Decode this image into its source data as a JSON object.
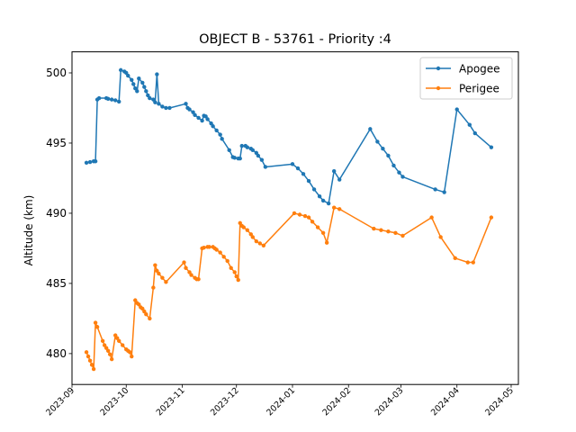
{
  "chart_data": {
    "type": "line",
    "title": "OBJECT B - 53761 - Priority :4",
    "xlabel": "",
    "ylabel": "Altitude (km)",
    "xlim": [
      "2023-09-01",
      "2024-05-05"
    ],
    "ylim": [
      477.8,
      501.5
    ],
    "yticks": [
      480,
      485,
      490,
      495,
      500
    ],
    "xticks": [
      "2023-09",
      "2023-10",
      "2023-11",
      "2023-12",
      "2024-01",
      "2024-02",
      "2024-03",
      "2024-04",
      "2024-05"
    ],
    "grid": false,
    "legend": "top-right",
    "colors": {
      "Apogee": "#1f77b4",
      "Perigee": "#ff7f0e"
    },
    "series": [
      {
        "name": "Apogee",
        "points": [
          [
            "2023-09-09",
            493.6
          ],
          [
            "2023-09-11",
            493.65
          ],
          [
            "2023-09-13",
            493.7
          ],
          [
            "2023-09-14",
            493.7
          ],
          [
            "2023-09-15",
            498.1
          ],
          [
            "2023-09-16",
            498.2
          ],
          [
            "2023-09-20",
            498.2
          ],
          [
            "2023-09-21",
            498.15
          ],
          [
            "2023-09-23",
            498.1
          ],
          [
            "2023-09-25",
            498.05
          ],
          [
            "2023-09-27",
            497.95
          ],
          [
            "2023-09-28",
            500.2
          ],
          [
            "2023-09-30",
            500.1
          ],
          [
            "2023-10-01",
            500.0
          ],
          [
            "2023-10-02",
            499.8
          ],
          [
            "2023-10-04",
            499.5
          ],
          [
            "2023-10-05",
            499.2
          ],
          [
            "2023-10-06",
            498.9
          ],
          [
            "2023-10-07",
            498.7
          ],
          [
            "2023-10-08",
            499.6
          ],
          [
            "2023-10-10",
            499.3
          ],
          [
            "2023-10-11",
            499.0
          ],
          [
            "2023-10-12",
            498.7
          ],
          [
            "2023-10-13",
            498.4
          ],
          [
            "2023-10-14",
            498.2
          ],
          [
            "2023-10-16",
            498.1
          ],
          [
            "2023-10-17",
            497.9
          ],
          [
            "2023-10-18",
            499.9
          ],
          [
            "2023-10-19",
            497.8
          ],
          [
            "2023-10-21",
            497.6
          ],
          [
            "2023-10-23",
            497.5
          ],
          [
            "2023-10-25",
            497.5
          ],
          [
            "2023-11-03",
            497.8
          ],
          [
            "2023-11-04",
            497.5
          ],
          [
            "2023-11-05",
            497.4
          ],
          [
            "2023-11-07",
            497.2
          ],
          [
            "2023-11-08",
            497.0
          ],
          [
            "2023-11-10",
            496.8
          ],
          [
            "2023-11-12",
            496.6
          ],
          [
            "2023-11-13",
            496.95
          ],
          [
            "2023-11-14",
            496.9
          ],
          [
            "2023-11-15",
            496.7
          ],
          [
            "2023-11-17",
            496.4
          ],
          [
            "2023-11-18",
            496.2
          ],
          [
            "2023-11-20",
            495.9
          ],
          [
            "2023-11-22",
            495.6
          ],
          [
            "2023-11-23",
            495.3
          ],
          [
            "2023-11-27",
            494.5
          ],
          [
            "2023-11-29",
            494.0
          ],
          [
            "2023-11-30",
            493.95
          ],
          [
            "2023-12-02",
            493.9
          ],
          [
            "2023-12-03",
            493.9
          ],
          [
            "2023-12-04",
            494.8
          ],
          [
            "2023-12-06",
            494.8
          ],
          [
            "2023-12-07",
            494.7
          ],
          [
            "2023-12-09",
            494.6
          ],
          [
            "2023-12-10",
            494.5
          ],
          [
            "2023-12-12",
            494.3
          ],
          [
            "2023-12-13",
            494.1
          ],
          [
            "2023-12-15",
            493.8
          ],
          [
            "2023-12-17",
            493.3
          ],
          [
            "2024-01-01",
            493.5
          ],
          [
            "2024-01-04",
            493.2
          ],
          [
            "2024-01-07",
            492.8
          ],
          [
            "2024-01-10",
            492.3
          ],
          [
            "2024-01-13",
            491.7
          ],
          [
            "2024-01-16",
            491.2
          ],
          [
            "2024-01-18",
            490.9
          ],
          [
            "2024-01-21",
            490.7
          ],
          [
            "2024-01-24",
            493.0
          ],
          [
            "2024-01-27",
            492.4
          ],
          [
            "2024-02-13",
            496.0
          ],
          [
            "2024-02-17",
            495.1
          ],
          [
            "2024-02-20",
            494.6
          ],
          [
            "2024-02-23",
            494.1
          ],
          [
            "2024-02-26",
            493.4
          ],
          [
            "2024-02-29",
            492.9
          ],
          [
            "2024-03-02",
            492.6
          ],
          [
            "2024-03-20",
            491.7
          ],
          [
            "2024-03-25",
            491.5
          ],
          [
            "2024-04-01",
            497.4
          ],
          [
            "2024-04-08",
            496.3
          ],
          [
            "2024-04-11",
            495.7
          ],
          [
            "2024-04-20",
            494.7
          ]
        ]
      },
      {
        "name": "Perigee",
        "points": [
          [
            "2023-09-09",
            480.1
          ],
          [
            "2023-09-10",
            479.8
          ],
          [
            "2023-09-11",
            479.5
          ],
          [
            "2023-09-12",
            479.2
          ],
          [
            "2023-09-13",
            478.9
          ],
          [
            "2023-09-14",
            482.2
          ],
          [
            "2023-09-15",
            481.9
          ],
          [
            "2023-09-18",
            480.9
          ],
          [
            "2023-09-19",
            480.6
          ],
          [
            "2023-09-20",
            480.4
          ],
          [
            "2023-09-21",
            480.2
          ],
          [
            "2023-09-22",
            479.95
          ],
          [
            "2023-09-23",
            479.6
          ],
          [
            "2023-09-25",
            481.3
          ],
          [
            "2023-09-26",
            481.1
          ],
          [
            "2023-09-27",
            480.9
          ],
          [
            "2023-09-29",
            480.6
          ],
          [
            "2023-10-01",
            480.3
          ],
          [
            "2023-10-02",
            480.2
          ],
          [
            "2023-10-03",
            480.1
          ],
          [
            "2023-10-04",
            479.8
          ],
          [
            "2023-10-06",
            483.8
          ],
          [
            "2023-10-07",
            483.6
          ],
          [
            "2023-10-08",
            483.5
          ],
          [
            "2023-10-09",
            483.3
          ],
          [
            "2023-10-10",
            483.2
          ],
          [
            "2023-10-11",
            483.0
          ],
          [
            "2023-10-12",
            482.8
          ],
          [
            "2023-10-14",
            482.5
          ],
          [
            "2023-10-16",
            484.7
          ],
          [
            "2023-10-17",
            486.3
          ],
          [
            "2023-10-18",
            485.9
          ],
          [
            "2023-10-19",
            485.7
          ],
          [
            "2023-10-21",
            485.4
          ],
          [
            "2023-10-23",
            485.1
          ],
          [
            "2023-11-02",
            486.5
          ],
          [
            "2023-11-03",
            486.1
          ],
          [
            "2023-11-05",
            485.8
          ],
          [
            "2023-11-06",
            485.6
          ],
          [
            "2023-11-08",
            485.4
          ],
          [
            "2023-11-09",
            485.3
          ],
          [
            "2023-11-10",
            485.3
          ],
          [
            "2023-11-12",
            487.5
          ],
          [
            "2023-11-13",
            487.55
          ],
          [
            "2023-11-15",
            487.6
          ],
          [
            "2023-11-16",
            487.6
          ],
          [
            "2023-11-18",
            487.6
          ],
          [
            "2023-11-19",
            487.5
          ],
          [
            "2023-11-20",
            487.4
          ],
          [
            "2023-11-22",
            487.2
          ],
          [
            "2023-11-24",
            486.9
          ],
          [
            "2023-11-26",
            486.6
          ],
          [
            "2023-11-28",
            486.1
          ],
          [
            "2023-11-30",
            485.8
          ],
          [
            "2023-12-01",
            485.5
          ],
          [
            "2023-12-02",
            485.25
          ],
          [
            "2023-12-03",
            489.3
          ],
          [
            "2023-12-04",
            489.1
          ],
          [
            "2023-12-05",
            489.0
          ],
          [
            "2023-12-07",
            488.8
          ],
          [
            "2023-12-09",
            488.5
          ],
          [
            "2023-12-10",
            488.3
          ],
          [
            "2023-12-12",
            488.0
          ],
          [
            "2023-12-14",
            487.85
          ],
          [
            "2023-12-16",
            487.7
          ],
          [
            "2024-01-02",
            490.0
          ],
          [
            "2024-01-05",
            489.9
          ],
          [
            "2024-01-08",
            489.8
          ],
          [
            "2024-01-10",
            489.7
          ],
          [
            "2024-01-12",
            489.4
          ],
          [
            "2024-01-15",
            489.0
          ],
          [
            "2024-01-18",
            488.6
          ],
          [
            "2024-01-20",
            487.9
          ],
          [
            "2024-01-24",
            490.4
          ],
          [
            "2024-01-27",
            490.3
          ],
          [
            "2024-02-15",
            488.9
          ],
          [
            "2024-02-19",
            488.8
          ],
          [
            "2024-02-23",
            488.7
          ],
          [
            "2024-02-27",
            488.6
          ],
          [
            "2024-03-02",
            488.4
          ],
          [
            "2024-03-18",
            489.7
          ],
          [
            "2024-03-23",
            488.3
          ],
          [
            "2024-03-31",
            486.8
          ],
          [
            "2024-04-07",
            486.5
          ],
          [
            "2024-04-10",
            486.5
          ],
          [
            "2024-04-20",
            489.7
          ]
        ]
      }
    ]
  }
}
